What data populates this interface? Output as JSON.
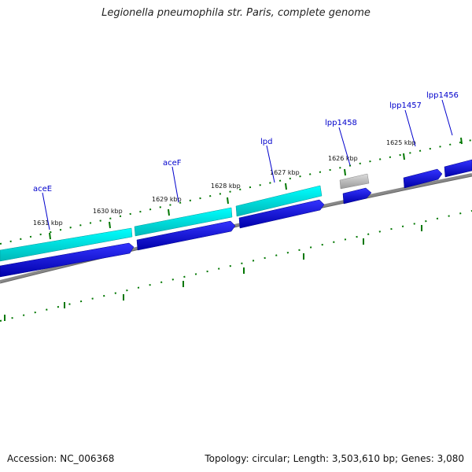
{
  "title": "Legionella pneumophila str. Paris, complete genome",
  "footer": {
    "accession": "Accession: NC_006368",
    "topology": "Topology: circular; Length: 3,503,610 bp; Genes: 3,080"
  },
  "ticks": {
    "labels": [
      "1631 kbp",
      "1630 kbp",
      "1629 kbp",
      "1628 kbp",
      "1627 kbp",
      "1626 kbp",
      "1625 kbp"
    ]
  },
  "genes": {
    "labels": [
      "aceE",
      "aceF",
      "lpd",
      "lpp1458",
      "lpp1457",
      "lpp1456"
    ]
  },
  "colors": {
    "cds_reverse": "#0000ee",
    "cds_highlight": "#00ffff",
    "cds_other": "#bbbbbb",
    "backbone": "#888888",
    "ticks": "#007700",
    "label": "#0000cc"
  }
}
